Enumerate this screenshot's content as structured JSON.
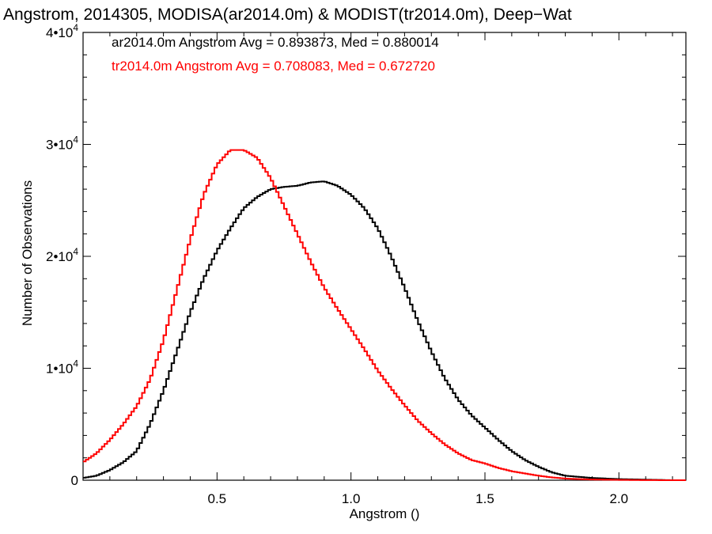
{
  "chart_data": {
    "type": "line",
    "title": "Angstrom, 2014305, MODISA(ar2014.0m) & MODIST(tr2014.0m), Deep−Wat",
    "xlabel": "Angstrom ()",
    "ylabel": "Number of Observations",
    "xlim": [
      0.0,
      2.25
    ],
    "ylim": [
      0,
      40000
    ],
    "x_ticks": [
      {
        "value": 0.5,
        "label": "0.5"
      },
      {
        "value": 1.0,
        "label": "1.0"
      },
      {
        "value": 1.5,
        "label": "1.5"
      },
      {
        "value": 2.0,
        "label": "2.0"
      }
    ],
    "y_ticks": [
      {
        "value": 0,
        "base": "0",
        "exp": ""
      },
      {
        "value": 10000,
        "base": "1•10",
        "exp": "4"
      },
      {
        "value": 20000,
        "base": "2•10",
        "exp": "4"
      },
      {
        "value": 30000,
        "base": "3•10",
        "exp": "4"
      },
      {
        "value": 40000,
        "base": "4•10",
        "exp": "4"
      }
    ],
    "annotations": [
      {
        "text": "ar2014.0m Angstrom Avg = 0.893873, Med = 0.880014",
        "color": "#000000"
      },
      {
        "text": "tr2014.0m Angstrom Avg = 0.708083, Med = 0.672720",
        "color": "#ff0000"
      }
    ],
    "series": [
      {
        "color": "#000000",
        "x": [
          0.0,
          0.05,
          0.1,
          0.15,
          0.2,
          0.25,
          0.3,
          0.35,
          0.4,
          0.45,
          0.5,
          0.55,
          0.6,
          0.65,
          0.7,
          0.75,
          0.8,
          0.85,
          0.9,
          0.95,
          1.0,
          1.05,
          1.1,
          1.15,
          1.2,
          1.25,
          1.3,
          1.35,
          1.4,
          1.45,
          1.5,
          1.55,
          1.6,
          1.65,
          1.7,
          1.75,
          1.8,
          1.9,
          2.0,
          2.1,
          2.2
        ],
        "y": [
          200,
          400,
          900,
          1600,
          2600,
          5000,
          8000,
          11500,
          15000,
          18000,
          20500,
          22500,
          24300,
          25300,
          26000,
          26200,
          26300,
          26600,
          26700,
          26300,
          25500,
          24300,
          22500,
          20000,
          17200,
          14200,
          11500,
          9100,
          7200,
          5800,
          4700,
          3600,
          2600,
          1800,
          1200,
          700,
          400,
          200,
          100,
          50,
          0
        ]
      },
      {
        "color": "#ff0000",
        "x": [
          0.0,
          0.05,
          0.1,
          0.15,
          0.2,
          0.25,
          0.3,
          0.35,
          0.4,
          0.45,
          0.5,
          0.55,
          0.6,
          0.65,
          0.7,
          0.75,
          0.8,
          0.85,
          0.9,
          0.95,
          1.0,
          1.05,
          1.1,
          1.15,
          1.2,
          1.25,
          1.3,
          1.35,
          1.4,
          1.45,
          1.5,
          1.55,
          1.6,
          1.65,
          1.7,
          1.75,
          1.8,
          1.9,
          2.0,
          2.1,
          2.2
        ],
        "y": [
          1600,
          2400,
          3600,
          5000,
          6600,
          9000,
          12500,
          17000,
          21500,
          25500,
          28200,
          29500,
          29500,
          28800,
          27000,
          24500,
          22000,
          19500,
          17200,
          15300,
          13500,
          11700,
          9800,
          8200,
          6700,
          5300,
          4200,
          3200,
          2400,
          1800,
          1500,
          1100,
          800,
          600,
          400,
          250,
          150,
          60,
          30,
          10,
          0
        ]
      }
    ]
  }
}
